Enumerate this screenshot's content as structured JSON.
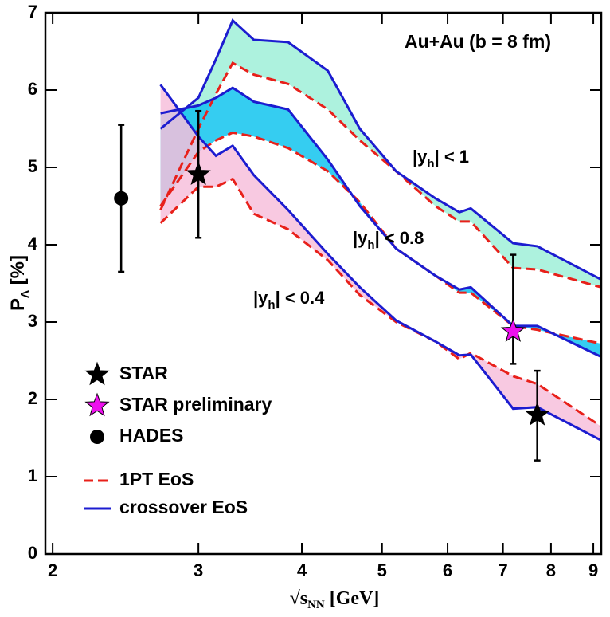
{
  "chart_data": {
    "type": "line",
    "x_scale": "log",
    "annotation": "Au+Au (b = 8 fm)",
    "x_label": [
      "√s",
      "NN",
      " [GeV]"
    ],
    "y_label": [
      "P",
      "Λ",
      " [%]"
    ],
    "xlim": [
      1.96,
      9.2
    ],
    "xticks": [
      2,
      3,
      4,
      5,
      6,
      7,
      8,
      9
    ],
    "ylim": [
      0,
      7
    ],
    "yticks": [
      0,
      1,
      2,
      3,
      4,
      5,
      6,
      7
    ],
    "x": [
      2.7,
      3.0,
      3.15,
      3.3,
      3.5,
      3.85,
      4.3,
      4.7,
      5.2,
      5.8,
      6.2,
      6.4,
      7.2,
      7.7,
      9.2
    ],
    "bands": [
      {
        "label": [
          "|y",
          "h",
          "| < 1"
        ],
        "fill": "#9ff0d8"
      },
      {
        "label": [
          "|y",
          "h",
          "| < 0.8"
        ],
        "fill": "#12c4ee"
      },
      {
        "label": [
          "|y",
          "h",
          "| < 0.4"
        ],
        "fill": "#f7bfdc"
      }
    ],
    "series": [
      {
        "name": "1PT EoS",
        "color": "#e8201a",
        "dashed": true,
        "values": [
          [
            4.45,
            5.5,
            5.95,
            6.35,
            6.2,
            6.08,
            5.75,
            5.35,
            4.95,
            4.5,
            4.3,
            4.3,
            3.7,
            3.68,
            3.45
          ],
          [
            4.5,
            5.2,
            5.35,
            5.45,
            5.4,
            5.25,
            4.95,
            4.55,
            3.95,
            3.6,
            3.38,
            3.38,
            2.95,
            2.9,
            2.72
          ],
          [
            4.28,
            4.75,
            4.75,
            4.85,
            4.4,
            4.2,
            3.8,
            3.35,
            3.0,
            2.75,
            2.52,
            2.6,
            2.3,
            2.2,
            1.65
          ]
        ]
      },
      {
        "name": "crossover EoS",
        "color": "#1c1cd0",
        "dashed": false,
        "values": [
          [
            5.5,
            5.9,
            6.4,
            6.9,
            6.65,
            6.62,
            6.25,
            5.5,
            4.95,
            4.6,
            4.42,
            4.47,
            4.02,
            3.98,
            3.55
          ],
          [
            5.7,
            5.8,
            5.9,
            6.03,
            5.85,
            5.75,
            5.1,
            4.5,
            3.95,
            3.6,
            3.42,
            3.45,
            2.95,
            2.95,
            2.55
          ],
          [
            6.07,
            5.4,
            5.15,
            5.28,
            4.9,
            4.45,
            3.88,
            3.45,
            3.02,
            2.75,
            2.57,
            2.58,
            1.88,
            1.9,
            1.47
          ]
        ]
      }
    ],
    "points": [
      {
        "name": "STAR",
        "marker": "star",
        "color": "#000000",
        "x": [
          3.0,
          7.7
        ],
        "y": [
          4.91,
          1.8
        ],
        "yerr_low": [
          0.82,
          0.59
        ],
        "yerr_high": [
          0.82,
          0.57
        ]
      },
      {
        "name": "STAR preliminary",
        "marker": "star",
        "color": "#ee10ee",
        "x": [
          7.2
        ],
        "y": [
          2.88
        ],
        "yerr_low": [
          0.42
        ],
        "yerr_high": [
          0.99
        ]
      },
      {
        "name": "HADES",
        "marker": "circle",
        "color": "#000000",
        "x": [
          2.42
        ],
        "y": [
          4.6
        ],
        "yerr_low": [
          0.95
        ],
        "yerr_high": [
          0.95
        ]
      }
    ]
  }
}
